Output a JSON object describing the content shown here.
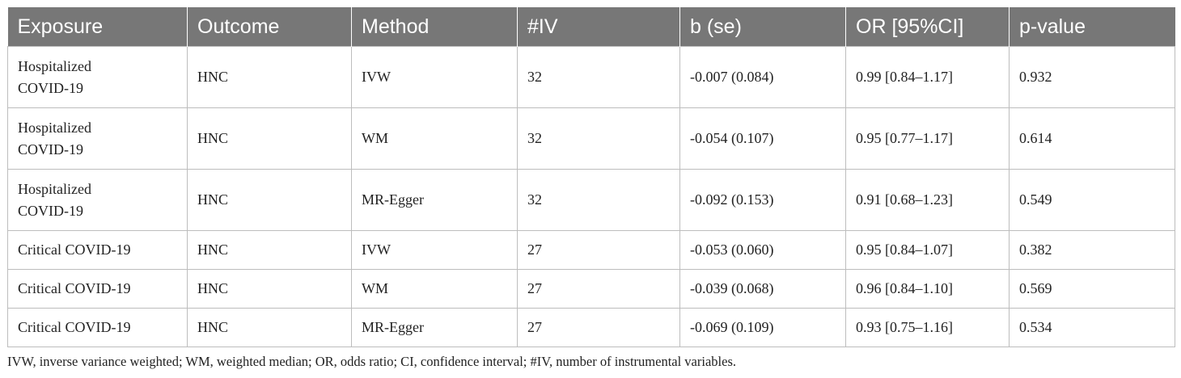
{
  "table": {
    "headers": [
      "Exposure",
      "Outcome",
      "Method",
      "#IV",
      "b (se)",
      "OR [95%CI]",
      "p-value"
    ],
    "rows": [
      {
        "exposure_line1": "Hospitalized",
        "exposure_line2": "COVID-19",
        "outcome": "HNC",
        "method": "IVW",
        "iv": "32",
        "b_se": "-0.007 (0.084)",
        "or_ci": "0.99 [0.84–1.17]",
        "p_value": "0.932"
      },
      {
        "exposure_line1": "Hospitalized",
        "exposure_line2": "COVID-19",
        "outcome": "HNC",
        "method": "WM",
        "iv": "32",
        "b_se": "-0.054 (0.107)",
        "or_ci": "0.95 [0.77–1.17]",
        "p_value": "0.614"
      },
      {
        "exposure_line1": "Hospitalized",
        "exposure_line2": "COVID-19",
        "outcome": "HNC",
        "method": "MR-Egger",
        "iv": "32",
        "b_se": "-0.092 (0.153)",
        "or_ci": "0.91 [0.68–1.23]",
        "p_value": "0.549"
      },
      {
        "exposure_line1": "Critical COVID-19",
        "exposure_line2": "",
        "outcome": "HNC",
        "method": "IVW",
        "iv": "27",
        "b_se": "-0.053 (0.060)",
        "or_ci": "0.95 [0.84–1.07]",
        "p_value": "0.382"
      },
      {
        "exposure_line1": "Critical COVID-19",
        "exposure_line2": "",
        "outcome": "HNC",
        "method": "WM",
        "iv": "27",
        "b_se": "-0.039 (0.068)",
        "or_ci": "0.96 [0.84–1.10]",
        "p_value": "0.569"
      },
      {
        "exposure_line1": "Critical COVID-19",
        "exposure_line2": "",
        "outcome": "HNC",
        "method": "MR-Egger",
        "iv": "27",
        "b_se": "-0.069 (0.109)",
        "or_ci": "0.93 [0.75–1.16]",
        "p_value": "0.534"
      }
    ]
  },
  "footnote": "IVW, inverse variance weighted; WM, weighted median; OR, odds ratio; CI, confidence interval; #IV, number of instrumental variables."
}
